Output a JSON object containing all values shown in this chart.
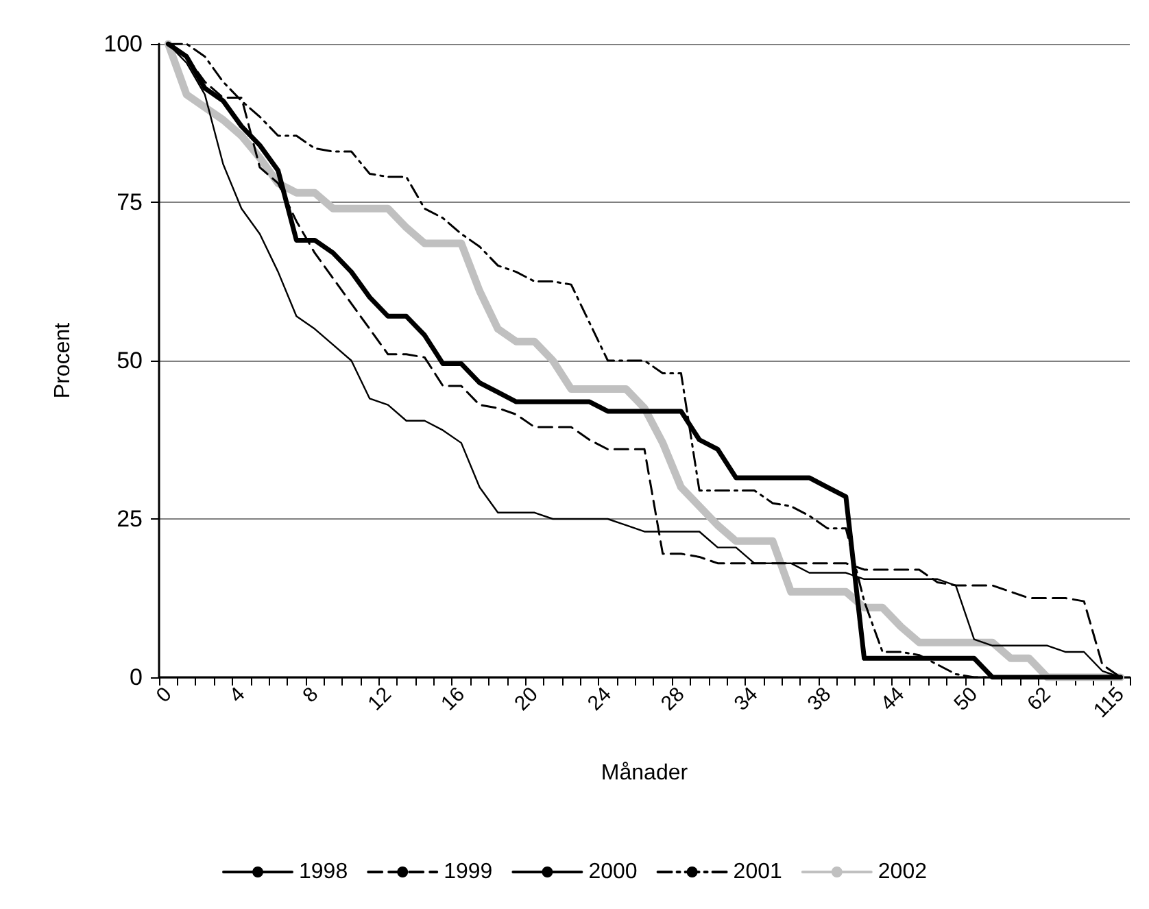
{
  "chart_data": {
    "type": "line",
    "xlabel": "Månader",
    "ylabel": "Procent",
    "categories": [
      "0",
      null,
      null,
      null,
      "4",
      null,
      null,
      null,
      "8",
      null,
      null,
      null,
      "12",
      null,
      null,
      null,
      "16",
      null,
      null,
      null,
      "20",
      null,
      null,
      null,
      "24",
      null,
      null,
      null,
      "28",
      null,
      null,
      null,
      "34",
      null,
      null,
      null,
      "38",
      null,
      null,
      null,
      "44",
      null,
      null,
      null,
      "50",
      null,
      null,
      null,
      "62",
      null,
      null,
      null,
      "115"
    ],
    "series": [
      {
        "name": "1998",
        "color": "#000000",
        "line_style": "solid",
        "values": [
          100,
          98,
          93,
          91,
          87,
          84,
          80,
          69,
          69,
          67,
          64,
          60,
          57,
          57,
          54,
          49.5,
          49.5,
          46.5,
          45,
          43.5,
          43.5,
          43.5,
          43.5,
          43.5,
          42,
          42,
          42,
          42,
          42,
          37.5,
          36,
          31.5,
          31.5,
          31.5,
          31.5,
          31.5,
          30,
          28.5,
          3,
          3,
          3,
          3,
          3,
          3,
          3,
          0,
          0,
          0,
          0,
          0,
          0,
          0,
          0
        ]
      },
      {
        "name": "1999",
        "color": "#000000",
        "line_style": "dashed",
        "values": [
          100,
          98,
          94,
          91.5,
          91.5,
          80.5,
          78,
          72,
          67,
          63,
          59,
          55,
          51,
          51,
          50.5,
          46,
          46,
          43,
          42.5,
          41.5,
          39.5,
          39.5,
          39.5,
          37.5,
          36,
          36,
          36,
          19.5,
          19.5,
          19,
          18,
          18,
          18,
          18,
          18,
          18,
          18,
          18,
          17,
          17,
          17,
          17,
          15,
          14.5,
          14.5,
          14.5,
          13.5,
          12.5,
          12.5,
          12.5,
          12,
          2,
          0
        ]
      },
      {
        "name": "2000",
        "color": "#000000",
        "line_style": "solid",
        "values": [
          100,
          97,
          92,
          81,
          74,
          70,
          64,
          57,
          55,
          52.5,
          50,
          44,
          43,
          40.5,
          40.5,
          39,
          37,
          30,
          26,
          26,
          26,
          25,
          25,
          25,
          25,
          24,
          23,
          23,
          23,
          23,
          20.5,
          20.5,
          18,
          18,
          18,
          16.5,
          16.5,
          16.5,
          15.5,
          15.5,
          15.5,
          15.5,
          15.5,
          14.5,
          6,
          5,
          5,
          5,
          5,
          4,
          4,
          1,
          0
        ]
      },
      {
        "name": "2001",
        "color": "#000000",
        "line_style": "dotted",
        "values": [
          100,
          100,
          98,
          94,
          91,
          88.5,
          85.5,
          85.5,
          83.5,
          83,
          83,
          79.5,
          79,
          79,
          74,
          72.5,
          70,
          68,
          65,
          64,
          62.5,
          62.5,
          62,
          56,
          50,
          50,
          50,
          48,
          48,
          29.5,
          29.5,
          29.5,
          29.5,
          27.5,
          27,
          25.5,
          23.5,
          23.5,
          12,
          4,
          4,
          3.5,
          2,
          0.5,
          0,
          0,
          0,
          0,
          0,
          0,
          0,
          0,
          0
        ]
      },
      {
        "name": "2002",
        "color": "#c0c0c0",
        "line_style": "solid",
        "values": [
          100,
          92,
          90,
          88,
          85.5,
          82,
          78,
          76.5,
          76.5,
          74,
          74,
          74,
          74,
          71,
          68.5,
          68.5,
          68.5,
          61,
          55,
          53,
          53,
          50,
          45.5,
          45.5,
          45.5,
          45.5,
          42.5,
          37,
          30,
          27,
          24,
          21.5,
          21.5,
          21.5,
          13.5,
          13.5,
          13.5,
          13.5,
          11,
          11,
          8,
          5.5,
          5.5,
          5.5,
          5.5,
          5.5,
          3,
          3,
          0,
          0,
          0,
          0,
          0
        ]
      }
    ],
    "ylim": [
      0,
      100
    ],
    "yticks": [
      0,
      25,
      50,
      75,
      100
    ],
    "grid": "y",
    "legend": "bottom",
    "marker": "none"
  }
}
